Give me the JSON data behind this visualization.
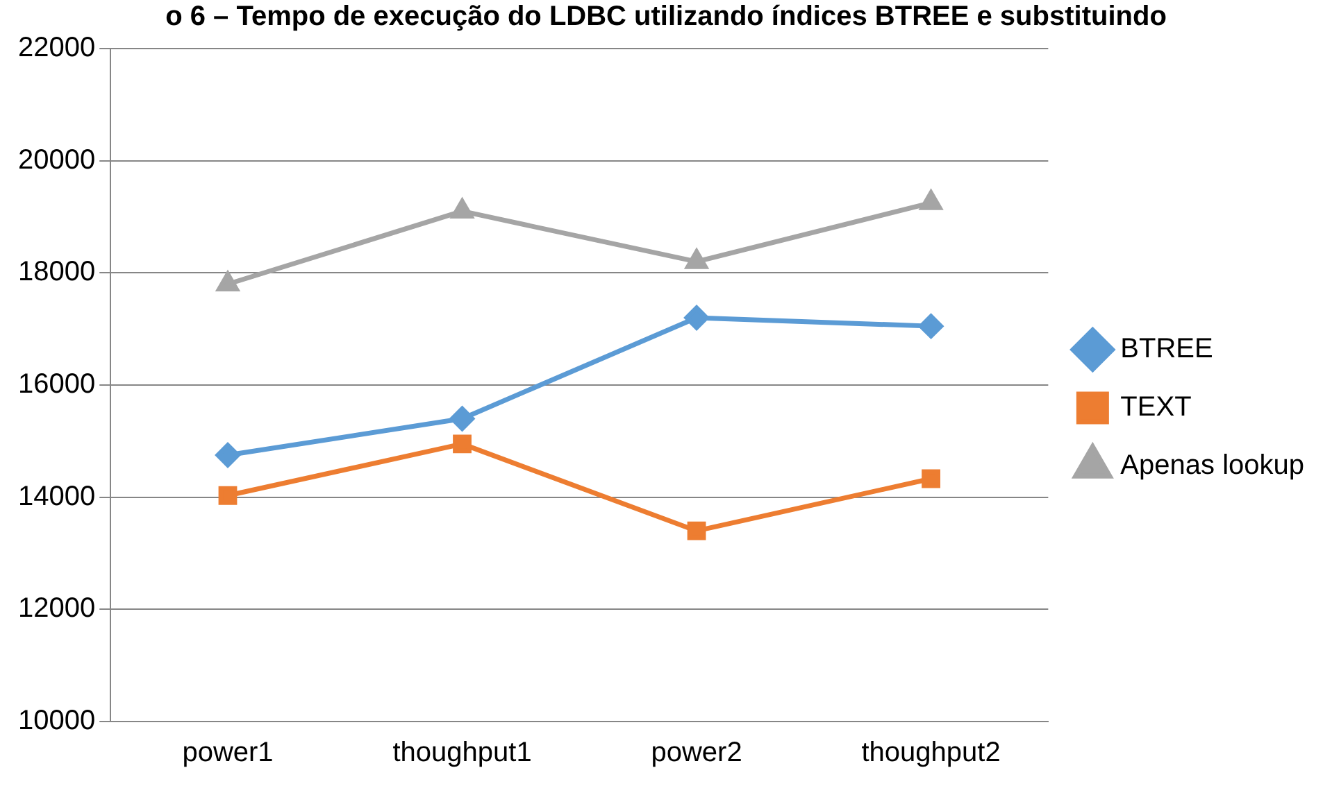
{
  "chart_data": {
    "type": "line",
    "title": "o 6 – Tempo de execução do LDBC utilizando índices BTREE e substituindo",
    "categories": [
      "power1",
      "thoughput1",
      "power2",
      "thoughput2"
    ],
    "series": [
      {
        "name": "BTREE",
        "color": "#5b9bd5",
        "marker": "diamond",
        "values": [
          14750,
          15400,
          17200,
          17050
        ]
      },
      {
        "name": "TEXT",
        "color": "#ed7d31",
        "marker": "square",
        "values": [
          14030,
          14950,
          13400,
          14330
        ]
      },
      {
        "name": "Apenas lookup",
        "color": "#a5a5a5",
        "marker": "triangle",
        "values": [
          17800,
          19100,
          18200,
          19250
        ]
      }
    ],
    "ylim": [
      10000,
      22000
    ],
    "yticks": [
      10000,
      12000,
      14000,
      16000,
      18000,
      20000,
      22000
    ],
    "grid": "y",
    "legend": "right"
  }
}
